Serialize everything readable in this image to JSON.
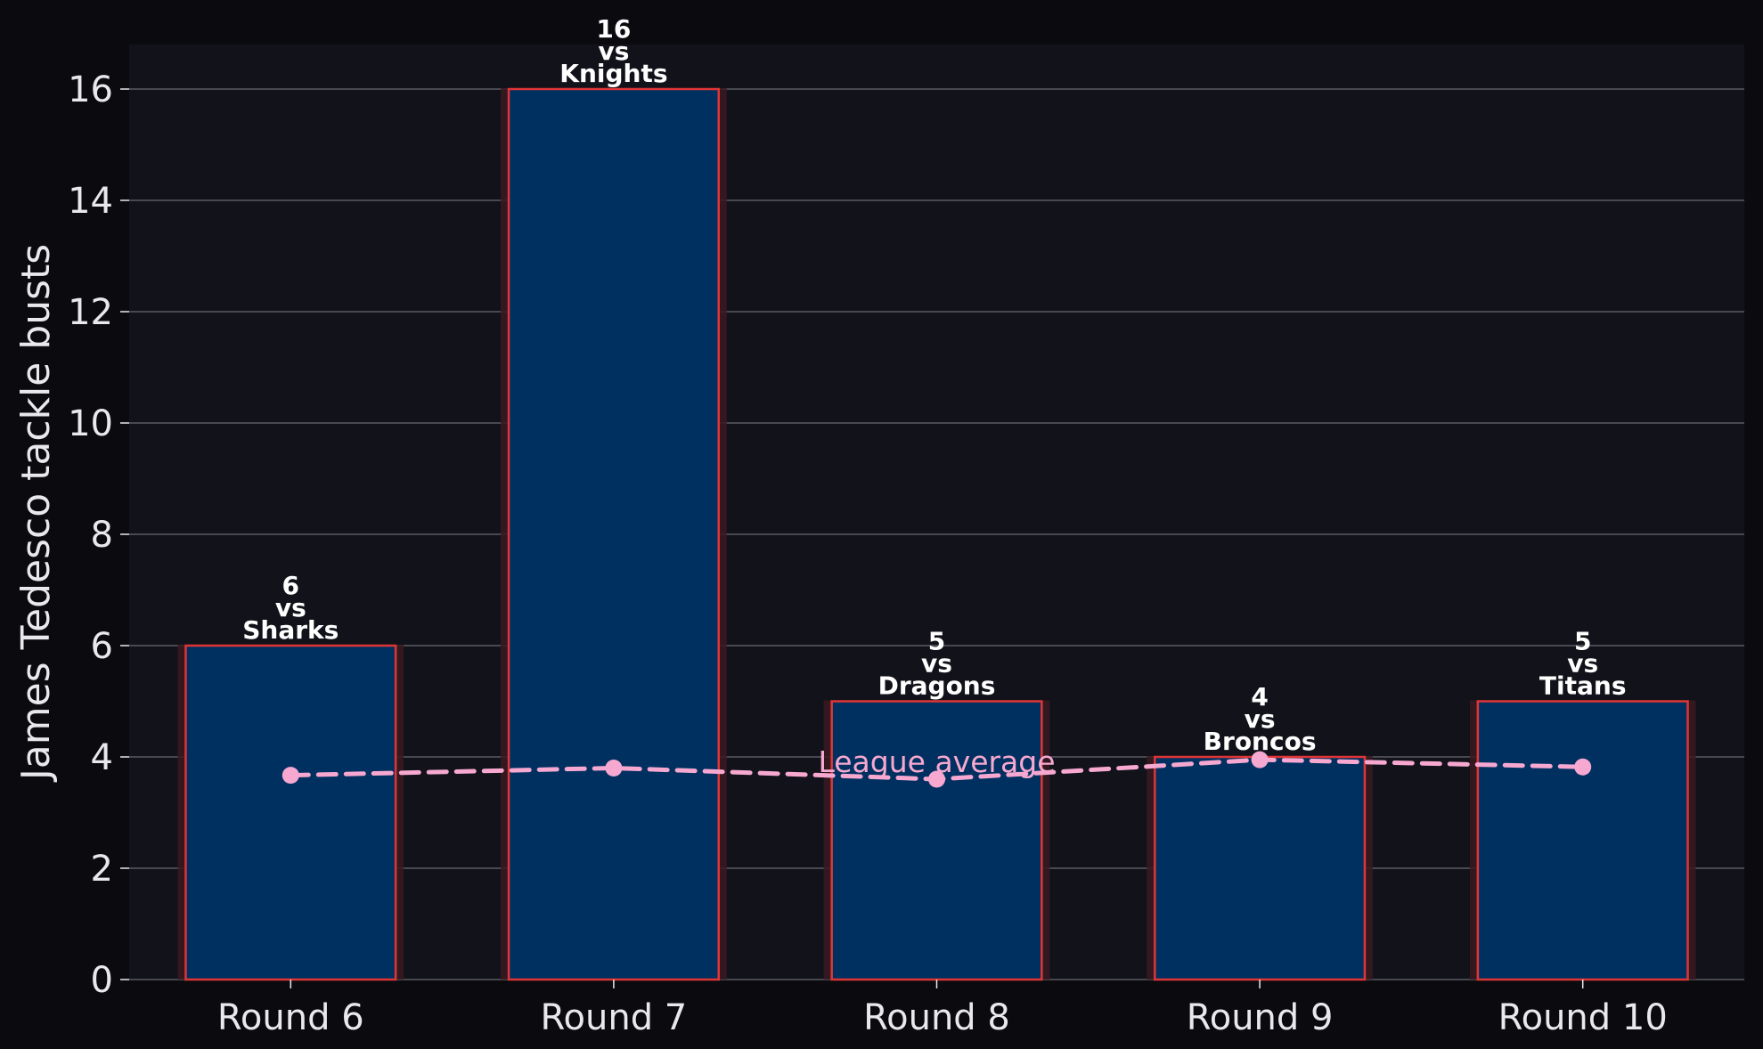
{
  "chart_data": {
    "type": "bar",
    "ylabel": "James Tedesco tackle busts",
    "xlabel": "",
    "title": "",
    "categories": [
      "Round 6",
      "Round 7",
      "Round 8",
      "Round 9",
      "Round 10"
    ],
    "opponents": [
      "Sharks",
      "Knights",
      "Dragons",
      "Broncos",
      "Titans"
    ],
    "values": [
      6,
      16,
      5,
      4,
      5
    ],
    "bar_labels": [
      {
        "value": "6",
        "vs": "vs",
        "opponent": "Sharks"
      },
      {
        "value": "16",
        "vs": "vs",
        "opponent": "Knights"
      },
      {
        "value": "5",
        "vs": "vs",
        "opponent": "Dragons"
      },
      {
        "value": "4",
        "vs": "vs",
        "opponent": "Broncos"
      },
      {
        "value": "5",
        "vs": "vs",
        "opponent": "Titans"
      }
    ],
    "series": [
      {
        "name": "League average",
        "type": "line",
        "values": [
          3.67,
          3.8,
          3.6,
          3.95,
          3.82
        ]
      }
    ],
    "ylim": [
      0,
      16.8
    ],
    "yticks": [
      0,
      2,
      4,
      6,
      8,
      10,
      12,
      14,
      16
    ],
    "grid": "horizontal",
    "annotation": "League average",
    "colors": {
      "background": "#0b0b0f",
      "plot_background": "#12121a",
      "bar_fill": "#003060",
      "bar_edge": "#e03535",
      "bar_glow": "#3a1a22",
      "average_line": "#f7a8d0",
      "gridline": "#5a5a62",
      "text": "#e8e8ee",
      "label_text": "#ffffff"
    }
  }
}
